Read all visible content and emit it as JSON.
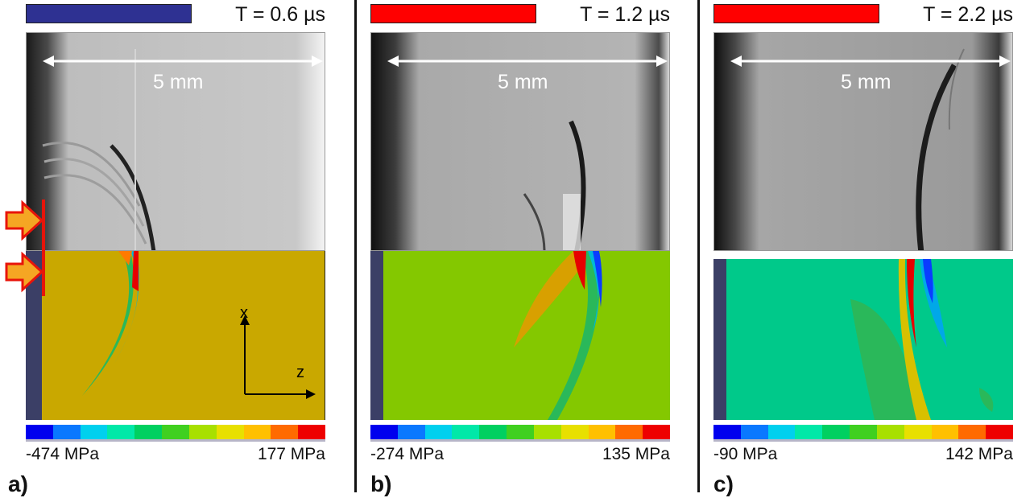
{
  "panels": [
    {
      "id": "a",
      "label": "a)",
      "time": "T = 0.6 µs",
      "swatch_color": "#2e3192",
      "scale_label": "5 mm",
      "stress_min": "-474 MPa",
      "stress_max": "177 MPa",
      "sim_bg": "#c9a800"
    },
    {
      "id": "b",
      "label": "b)",
      "time": "T = 1.2 µs",
      "swatch_color": "#ff0000",
      "scale_label": "5 mm",
      "stress_min": "-274 MPa",
      "stress_max": "135 MPa",
      "sim_bg": "#84c800"
    },
    {
      "id": "c",
      "label": "c)",
      "time": "T = 2.2 µs",
      "swatch_color": "#ff0000",
      "scale_label": "5 mm",
      "stress_min": "-90 MPa",
      "stress_max": "142 MPa",
      "sim_bg": "#00c98a"
    }
  ],
  "axes": {
    "x": "x",
    "z": "z"
  },
  "colorbar": [
    "#0000ee",
    "#0a78ff",
    "#00d0ee",
    "#00e8a8",
    "#00d060",
    "#40d020",
    "#a8e000",
    "#e8e000",
    "#ffc000",
    "#ff6a00",
    "#ee0000"
  ]
}
